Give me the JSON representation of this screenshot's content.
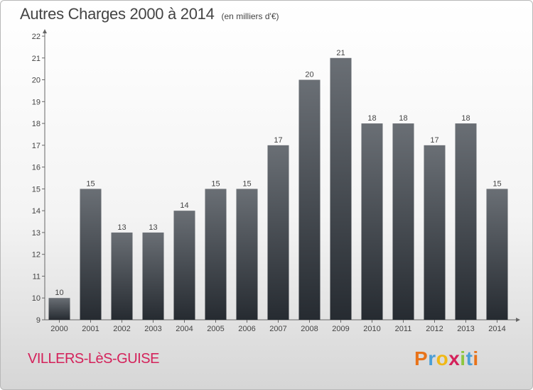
{
  "header": {
    "title": "Autres Charges 2000 à 2014",
    "unit": "(en milliers d'€)"
  },
  "footer": {
    "city": "VILLERS-LèS-GUISE",
    "logo_letters": [
      "P",
      "r",
      "o",
      "x",
      "i",
      "t",
      "i"
    ],
    "logo_colors": [
      "#e8731a",
      "#4b9ed6",
      "#f0b816",
      "#d4215a",
      "#8dc63f",
      "#4b9ed6",
      "#e8731a"
    ]
  },
  "chart_data": {
    "type": "bar",
    "categories": [
      "2000",
      "2001",
      "2002",
      "2003",
      "2004",
      "2005",
      "2006",
      "2007",
      "2008",
      "2009",
      "2010",
      "2011",
      "2012",
      "2013",
      "2014"
    ],
    "values": [
      10,
      15,
      13,
      13,
      14,
      15,
      15,
      17,
      20,
      21,
      18,
      18,
      17,
      18,
      15
    ],
    "title": "Autres Charges 2000 à 2014",
    "ylim": [
      9,
      22
    ],
    "yticks": [
      9,
      10,
      11,
      12,
      13,
      14,
      15,
      16,
      17,
      18,
      19,
      20,
      21,
      22
    ],
    "grid": false,
    "bar_color_top": "#6a6f75",
    "bar_color_bottom": "#262b31"
  }
}
